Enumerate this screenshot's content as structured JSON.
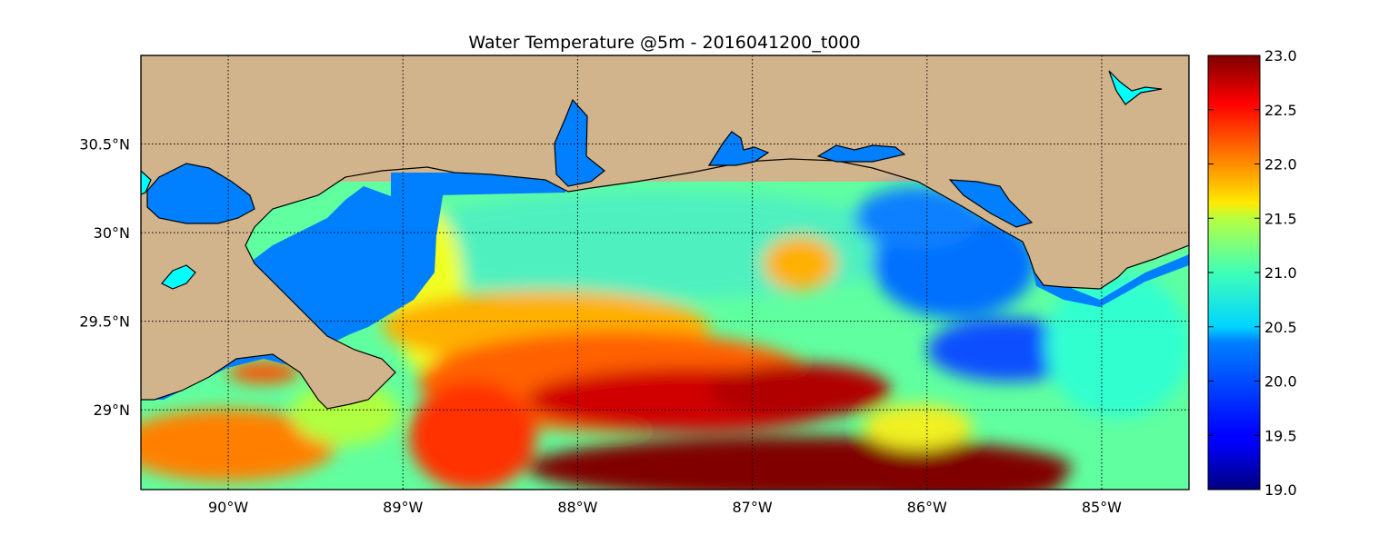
{
  "title": "Water Temperature @5m - 2016041200_t000",
  "map": {
    "lon_range": [
      -90.5,
      -84.5
    ],
    "lat_range": [
      28.55,
      31.0
    ],
    "lon_ticks": [
      {
        "value": -90,
        "label": "90°W"
      },
      {
        "value": -89,
        "label": "89°W"
      },
      {
        "value": -88,
        "label": "88°W"
      },
      {
        "value": -87,
        "label": "87°W"
      },
      {
        "value": -86,
        "label": "86°W"
      },
      {
        "value": -85,
        "label": "85°W"
      }
    ],
    "lat_ticks": [
      {
        "value": 30.5,
        "label": "30.5°N"
      },
      {
        "value": 30.0,
        "label": "30°N"
      },
      {
        "value": 29.5,
        "label": "29.5°N"
      },
      {
        "value": 29.0,
        "label": "29°N"
      }
    ],
    "grid": "dotted",
    "land_color": "#d2b48c",
    "masked_water_color": "#0080ff",
    "inland_water_color": "#00ffff",
    "coastline_color": "#000000"
  },
  "colorbar": {
    "min": 19.0,
    "max": 23.0,
    "colormap": "jet",
    "placement": "right",
    "ticks": [
      "19.0",
      "19.5",
      "20.0",
      "20.5",
      "21.0",
      "21.5",
      "22.0",
      "22.5",
      "23.0"
    ]
  }
}
